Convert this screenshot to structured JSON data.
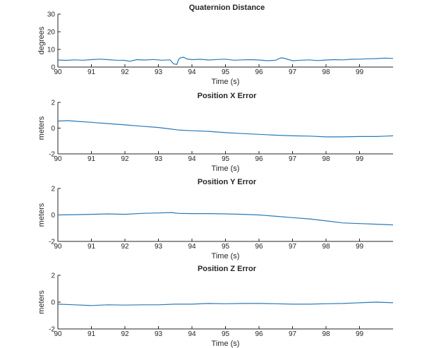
{
  "chart_data": [
    {
      "type": "line",
      "title": "Quaternion Distance",
      "xlabel": "Time (s)",
      "ylabel": "degrees",
      "xlim": [
        90,
        100
      ],
      "ylim": [
        0,
        30
      ],
      "xticks": [
        90,
        91,
        92,
        93,
        94,
        95,
        96,
        97,
        98,
        99
      ],
      "yticks": [
        0,
        10,
        20,
        30
      ],
      "series": [
        {
          "x": [
            90.0,
            90.25,
            90.5,
            90.75,
            91.0,
            91.25,
            91.5,
            91.75,
            92.0,
            92.15,
            92.35,
            92.6,
            92.85,
            93.1,
            93.35,
            93.45,
            93.55,
            93.6,
            93.65,
            93.75,
            93.85,
            94.0,
            94.25,
            94.5,
            94.75,
            95.0,
            95.25,
            95.5,
            95.75,
            96.0,
            96.25,
            96.5,
            96.65,
            96.75,
            97.0,
            97.25,
            97.5,
            97.75,
            98.0,
            98.25,
            98.5,
            98.75,
            99.0,
            99.25,
            99.5,
            99.75,
            100.0
          ],
          "y": [
            4.0,
            3.8,
            4.1,
            3.9,
            4.2,
            4.5,
            4.2,
            3.9,
            3.8,
            3.3,
            4.2,
            4.0,
            4.3,
            3.9,
            4.1,
            1.8,
            1.5,
            4.3,
            5.2,
            5.6,
            4.6,
            4.2,
            4.4,
            4.0,
            4.3,
            4.5,
            3.9,
            4.1,
            4.2,
            4.0,
            3.6,
            3.9,
            5.2,
            5.0,
            3.6,
            3.9,
            4.1,
            3.7,
            4.0,
            4.2,
            4.1,
            4.4,
            4.5,
            4.7,
            4.8,
            5.1,
            4.9
          ]
        }
      ]
    },
    {
      "type": "line",
      "title": "Position X Error",
      "xlabel": "Time (s)",
      "ylabel": "meters",
      "xlim": [
        90,
        100
      ],
      "ylim": [
        -2,
        2
      ],
      "xticks": [
        90,
        91,
        92,
        93,
        94,
        95,
        96,
        97,
        98,
        99
      ],
      "yticks": [
        -2,
        0,
        2
      ],
      "series": [
        {
          "x": [
            90.0,
            90.3,
            90.6,
            91.0,
            91.5,
            92.0,
            92.5,
            93.0,
            93.3,
            93.6,
            94.0,
            94.5,
            95.0,
            95.5,
            96.0,
            96.5,
            97.0,
            97.5,
            98.0,
            98.5,
            99.0,
            99.5,
            99.8,
            100.0
          ],
          "y": [
            0.55,
            0.58,
            0.52,
            0.45,
            0.35,
            0.25,
            0.15,
            0.05,
            -0.05,
            -0.15,
            -0.2,
            -0.25,
            -0.35,
            -0.42,
            -0.48,
            -0.55,
            -0.6,
            -0.62,
            -0.68,
            -0.68,
            -0.65,
            -0.65,
            -0.62,
            -0.6
          ]
        }
      ]
    },
    {
      "type": "line",
      "title": "Position Y Error",
      "xlabel": "Time (s)",
      "ylabel": "meters",
      "xlim": [
        90,
        100
      ],
      "ylim": [
        -2,
        2
      ],
      "xticks": [
        90,
        91,
        92,
        93,
        94,
        95,
        96,
        97,
        98,
        99
      ],
      "yticks": [
        -2,
        0,
        2
      ],
      "series": [
        {
          "x": [
            90.0,
            90.5,
            91.0,
            91.5,
            92.0,
            92.5,
            93.0,
            93.4,
            93.6,
            94.0,
            94.5,
            95.0,
            95.5,
            96.0,
            96.5,
            97.0,
            97.5,
            98.0,
            98.5,
            99.0,
            99.5,
            100.0
          ],
          "y": [
            0.0,
            0.02,
            0.05,
            0.08,
            0.05,
            0.12,
            0.15,
            0.18,
            0.12,
            0.1,
            0.1,
            0.08,
            0.05,
            0.0,
            -0.1,
            -0.2,
            -0.3,
            -0.45,
            -0.6,
            -0.65,
            -0.7,
            -0.75
          ]
        }
      ]
    },
    {
      "type": "line",
      "title": "Position Z Error",
      "xlabel": "Time (s)",
      "ylabel": "meters",
      "xlim": [
        90,
        100
      ],
      "ylim": [
        -2,
        2
      ],
      "xticks": [
        90,
        91,
        92,
        93,
        94,
        95,
        96,
        97,
        98,
        99
      ],
      "yticks": [
        -2,
        0,
        2
      ],
      "series": [
        {
          "x": [
            90.0,
            90.5,
            91.0,
            91.5,
            92.0,
            92.5,
            93.0,
            93.5,
            94.0,
            94.5,
            95.0,
            95.5,
            96.0,
            96.5,
            97.0,
            97.5,
            98.0,
            98.5,
            99.0,
            99.5,
            100.0
          ],
          "y": [
            -0.15,
            -0.2,
            -0.25,
            -0.2,
            -0.22,
            -0.2,
            -0.2,
            -0.15,
            -0.15,
            -0.1,
            -0.12,
            -0.1,
            -0.1,
            -0.12,
            -0.15,
            -0.15,
            -0.12,
            -0.1,
            -0.05,
            0.0,
            -0.05
          ]
        }
      ]
    }
  ]
}
